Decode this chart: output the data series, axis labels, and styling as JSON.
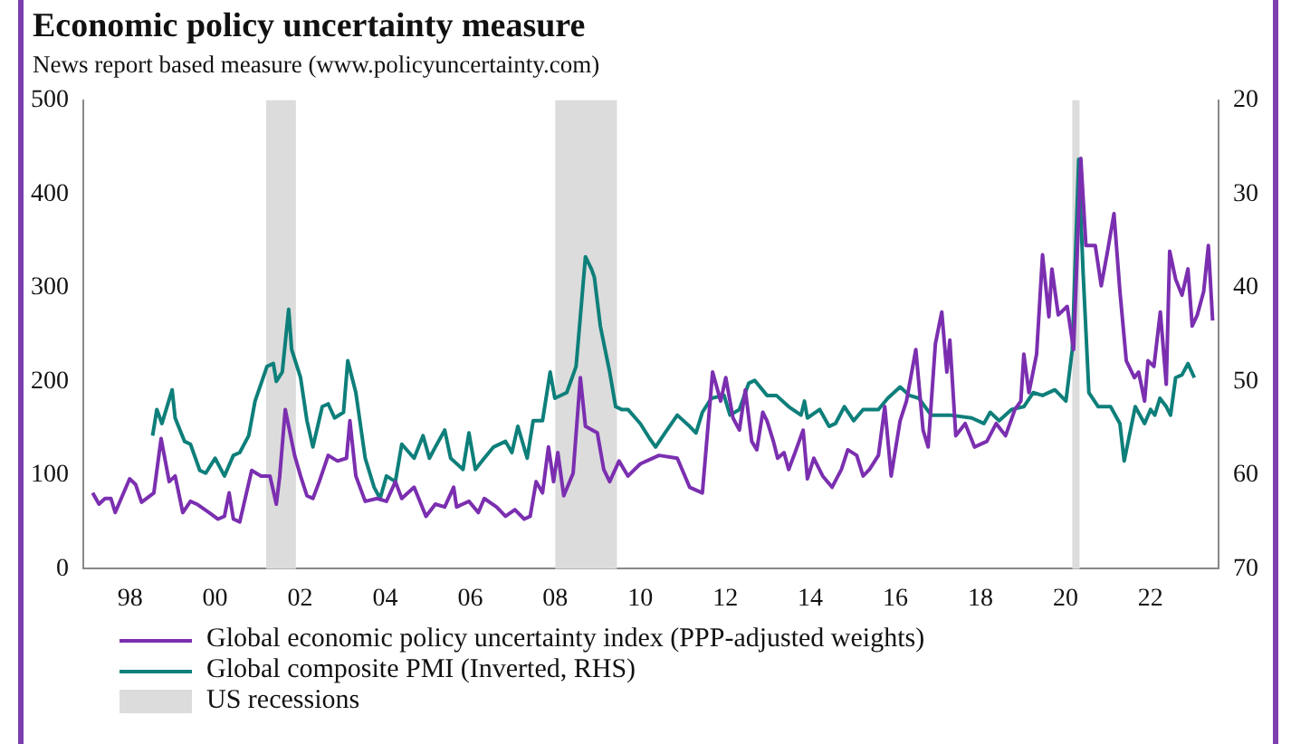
{
  "chart_data": {
    "type": "line",
    "title": "Economic policy uncertainty measure",
    "subtitle": "News report based measure (www.policyuncertainty.com)",
    "xlim": [
      1996.9,
      2023.6
    ],
    "xticks": [
      {
        "value": 1998,
        "label": "98"
      },
      {
        "value": 2000,
        "label": "00"
      },
      {
        "value": 2002,
        "label": "02"
      },
      {
        "value": 2004,
        "label": "04"
      },
      {
        "value": 2006,
        "label": "06"
      },
      {
        "value": 2008,
        "label": "08"
      },
      {
        "value": 2010,
        "label": "10"
      },
      {
        "value": 2012,
        "label": "12"
      },
      {
        "value": 2014,
        "label": "14"
      },
      {
        "value": 2016,
        "label": "16"
      },
      {
        "value": 2018,
        "label": "18"
      },
      {
        "value": 2020,
        "label": "20"
      },
      {
        "value": 2022,
        "label": "22"
      }
    ],
    "ylim": [
      0,
      500
    ],
    "yticks": [
      0,
      100,
      200,
      300,
      400,
      500
    ],
    "y2lim": [
      70,
      20
    ],
    "y2ticks": [
      20,
      30,
      40,
      50,
      60,
      70
    ],
    "grid": false,
    "legend": "bottom",
    "marker": "none",
    "line_style": "solid",
    "bands": [
      {
        "axis": "x",
        "from": 2001.2,
        "to": 2001.9,
        "label": "US recessions",
        "color": "#dcdcdc"
      },
      {
        "axis": "x",
        "from": 2008.0,
        "to": 2009.45,
        "color": "#dcdcdc"
      },
      {
        "axis": "x",
        "from": 2020.16,
        "to": 2020.33,
        "color": "#dcdcdc"
      }
    ],
    "series": [
      {
        "name": "Global economic policy uncertainty index (PPP-adjusted weights)",
        "color": "#7b2fb0",
        "x": [
          1997.12,
          1997.27,
          1997.41,
          1997.55,
          1997.65,
          1997.99,
          1998.13,
          1998.27,
          1998.56,
          1998.73,
          1998.92,
          1999.06,
          1999.24,
          1999.42,
          1999.57,
          1999.86,
          2000.07,
          2000.22,
          2000.33,
          2000.43,
          2000.58,
          2000.86,
          2001.08,
          2001.29,
          2001.44,
          2001.52,
          2001.65,
          2001.87,
          2002.01,
          2002.16,
          2002.3,
          2002.45,
          2002.66,
          2002.88,
          2003.09,
          2003.17,
          2003.31,
          2003.53,
          2003.81,
          2004.03,
          2004.24,
          2004.39,
          2004.68,
          2004.96,
          2005.18,
          2005.4,
          2005.61,
          2005.68,
          2005.97,
          2006.19,
          2006.33,
          2006.62,
          2006.83,
          2007.05,
          2007.27,
          2007.41,
          2007.55,
          2007.7,
          2007.84,
          2007.96,
          2008.06,
          2008.2,
          2008.42,
          2008.59,
          2008.71,
          2008.99,
          2009.14,
          2009.28,
          2009.5,
          2009.71,
          2010.0,
          2010.44,
          2010.87,
          2011.16,
          2011.46,
          2011.7,
          2011.89,
          2012.01,
          2012.18,
          2012.33,
          2012.47,
          2012.62,
          2012.74,
          2012.88,
          2012.98,
          2013.13,
          2013.23,
          2013.38,
          2013.49,
          2013.64,
          2013.83,
          2013.93,
          2014.08,
          2014.29,
          2014.51,
          2014.73,
          2014.88,
          2015.09,
          2015.24,
          2015.39,
          2015.6,
          2015.75,
          2015.9,
          2016.11,
          2016.26,
          2016.48,
          2016.65,
          2016.77,
          2016.94,
          2017.09,
          2017.21,
          2017.28,
          2017.42,
          2017.64,
          2017.86,
          2018.15,
          2018.37,
          2018.59,
          2018.81,
          2018.95,
          2019.02,
          2019.14,
          2019.32,
          2019.46,
          2019.61,
          2019.68,
          2019.83,
          2020.04,
          2020.19,
          2020.36,
          2020.48,
          2020.7,
          2020.84,
          2020.99,
          2021.14,
          2021.28,
          2021.43,
          2021.62,
          2021.72,
          2021.86,
          2021.94,
          2022.08,
          2022.23,
          2022.37,
          2022.45,
          2022.59,
          2022.74,
          2022.88,
          2022.98,
          2023.1,
          2023.25,
          2023.36,
          2023.46
        ],
        "values": [
          81,
          69,
          75,
          75,
          60,
          96,
          90,
          71,
          81,
          139,
          93,
          99,
          60,
          72,
          69,
          60,
          53,
          56,
          81,
          53,
          50,
          105,
          99,
          99,
          69,
          99,
          170,
          121,
          99,
          78,
          75,
          93,
          121,
          115,
          118,
          158,
          99,
          72,
          75,
          72,
          93,
          75,
          87,
          56,
          69,
          66,
          87,
          66,
          72,
          60,
          75,
          66,
          56,
          63,
          53,
          56,
          93,
          81,
          130,
          93,
          124,
          78,
          102,
          204,
          152,
          145,
          106,
          93,
          115,
          99,
          112,
          121,
          118,
          87,
          81,
          210,
          179,
          204,
          161,
          148,
          191,
          136,
          127,
          167,
          158,
          136,
          118,
          124,
          106,
          124,
          148,
          96,
          118,
          99,
          87,
          106,
          127,
          121,
          99,
          106,
          121,
          173,
          99,
          158,
          179,
          234,
          148,
          130,
          240,
          274,
          210,
          244,
          142,
          155,
          130,
          136,
          155,
          142,
          170,
          179,
          229,
          188,
          229,
          335,
          269,
          320,
          271,
          280,
          234,
          438,
          345,
          345,
          302,
          339,
          379,
          296,
          222,
          204,
          210,
          179,
          222,
          216,
          274,
          197,
          339,
          309,
          292,
          320,
          259,
          271,
          296,
          345,
          265
        ]
      },
      {
        "name": "Global composite PMI (Inverted, RHS)",
        "color": "#0e7f7a",
        "axis": "y2",
        "x": [
          1998.53,
          1998.63,
          1998.75,
          1998.99,
          1999.06,
          1999.28,
          1999.42,
          1999.64,
          1999.78,
          2000.0,
          2000.22,
          2000.43,
          2000.58,
          2000.79,
          2000.94,
          2001.22,
          2001.37,
          2001.44,
          2001.58,
          2001.73,
          2001.8,
          2002.01,
          2002.16,
          2002.3,
          2002.52,
          2002.66,
          2002.81,
          2003.02,
          2003.12,
          2003.31,
          2003.53,
          2003.74,
          2003.88,
          2004.03,
          2004.24,
          2004.39,
          2004.68,
          2004.89,
          2005.04,
          2005.18,
          2005.4,
          2005.54,
          2005.83,
          2005.97,
          2006.12,
          2006.33,
          2006.55,
          2006.83,
          2006.98,
          2007.12,
          2007.34,
          2007.48,
          2007.7,
          2007.88,
          2007.99,
          2008.27,
          2008.49,
          2008.71,
          2008.85,
          2008.92,
          2009.06,
          2009.28,
          2009.42,
          2009.56,
          2009.71,
          2010.0,
          2010.22,
          2010.36,
          2010.58,
          2010.87,
          2011.16,
          2011.31,
          2011.46,
          2011.67,
          2011.97,
          2012.11,
          2012.33,
          2012.55,
          2012.69,
          2012.98,
          2013.2,
          2013.49,
          2013.78,
          2013.86,
          2013.93,
          2014.22,
          2014.44,
          2014.59,
          2014.8,
          2015.02,
          2015.24,
          2015.6,
          2015.82,
          2016.11,
          2016.33,
          2016.55,
          2016.84,
          2017.28,
          2017.79,
          2018.08,
          2018.23,
          2018.44,
          2018.73,
          2019.02,
          2019.24,
          2019.46,
          2019.75,
          2020.01,
          2020.16,
          2020.31,
          2020.41,
          2020.55,
          2020.77,
          2021.06,
          2021.28,
          2021.38,
          2021.64,
          2021.86,
          2022.0,
          2022.1,
          2022.22,
          2022.37,
          2022.47,
          2022.59,
          2022.74,
          2022.88,
          2023.03
        ],
        "values": [
          55.8,
          53.0,
          54.5,
          50.9,
          53.9,
          56.4,
          56.7,
          59.5,
          59.8,
          58.2,
          60.1,
          57.9,
          57.6,
          55.8,
          52.1,
          48.4,
          48.1,
          50.0,
          49.0,
          42.3,
          46.6,
          49.6,
          54.2,
          57.0,
          52.7,
          52.4,
          53.9,
          53.3,
          47.8,
          51.2,
          58.2,
          61.3,
          62.5,
          60.1,
          60.7,
          56.7,
          58.2,
          55.8,
          58.2,
          57.0,
          55.2,
          58.2,
          59.4,
          55.5,
          59.4,
          58.2,
          57.0,
          56.4,
          57.6,
          54.8,
          58.2,
          54.2,
          54.2,
          49.0,
          51.8,
          51.2,
          48.4,
          36.7,
          38.0,
          38.9,
          44.1,
          49.0,
          52.7,
          53.0,
          53.0,
          54.5,
          56.1,
          57.0,
          55.5,
          53.6,
          54.8,
          55.5,
          53.3,
          51.8,
          51.5,
          53.6,
          53.0,
          50.2,
          49.9,
          51.5,
          51.5,
          52.7,
          53.6,
          52.1,
          53.9,
          53.0,
          54.8,
          54.5,
          52.7,
          54.2,
          53.0,
          53.0,
          51.8,
          50.6,
          51.5,
          51.8,
          53.6,
          53.6,
          53.9,
          54.5,
          53.3,
          54.2,
          53.0,
          52.7,
          51.2,
          51.5,
          50.9,
          52.1,
          46.6,
          26.3,
          38.0,
          51.2,
          52.7,
          52.7,
          54.5,
          58.5,
          52.7,
          54.5,
          53.0,
          53.6,
          51.8,
          52.7,
          53.6,
          49.6,
          49.3,
          48.1,
          49.6
        ]
      }
    ]
  }
}
